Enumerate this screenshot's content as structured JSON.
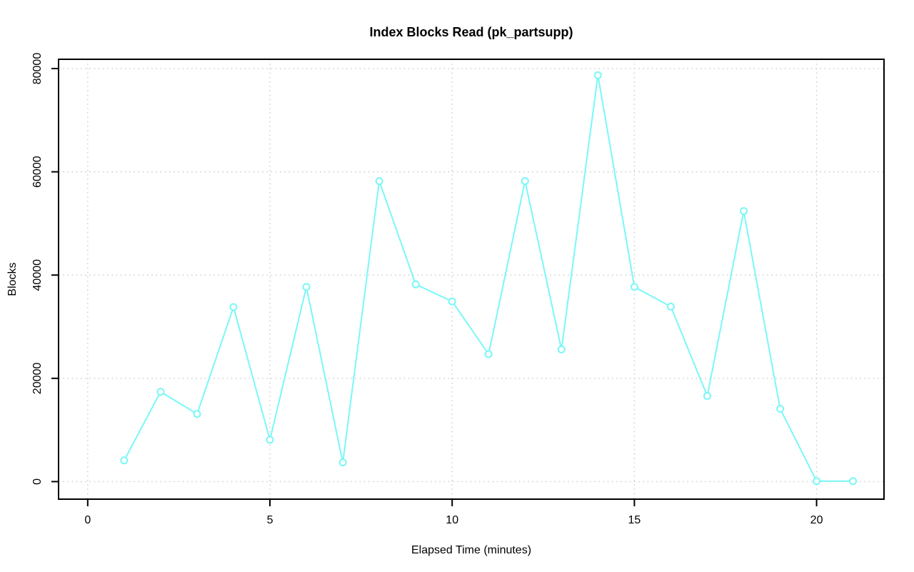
{
  "chart_data": {
    "type": "line",
    "title": "Index Blocks Read (pk_partsupp)",
    "xlabel": "Elapsed Time (minutes)",
    "ylabel": "Blocks",
    "series": [
      {
        "name": "index-blocks-read",
        "x": [
          1,
          2,
          3,
          4,
          5,
          6,
          7,
          8,
          9,
          10,
          11,
          12,
          13,
          14,
          15,
          16,
          17,
          18,
          19,
          20,
          21
        ],
        "values": [
          4100,
          17400,
          13100,
          33800,
          8100,
          37700,
          3700,
          58200,
          38200,
          34900,
          24700,
          58200,
          25600,
          78700,
          37700,
          33900,
          16600,
          52400,
          14100,
          100,
          100
        ]
      }
    ],
    "x_ticks": [
      0,
      5,
      10,
      15,
      20
    ],
    "y_ticks": [
      0,
      20000,
      40000,
      60000,
      80000
    ],
    "xlim": [
      -0.8,
      21.85
    ],
    "ylim": [
      -3400,
      81800
    ],
    "grid": true,
    "grid_style": "dotted",
    "legend": "none",
    "marker": "open-circle",
    "colors": {
      "line": "#7BF7F7",
      "marker_fill": "#FFFFFF",
      "grid": "#CBCBCB",
      "axis": "#000000",
      "background": "#FFFFFF"
    }
  }
}
